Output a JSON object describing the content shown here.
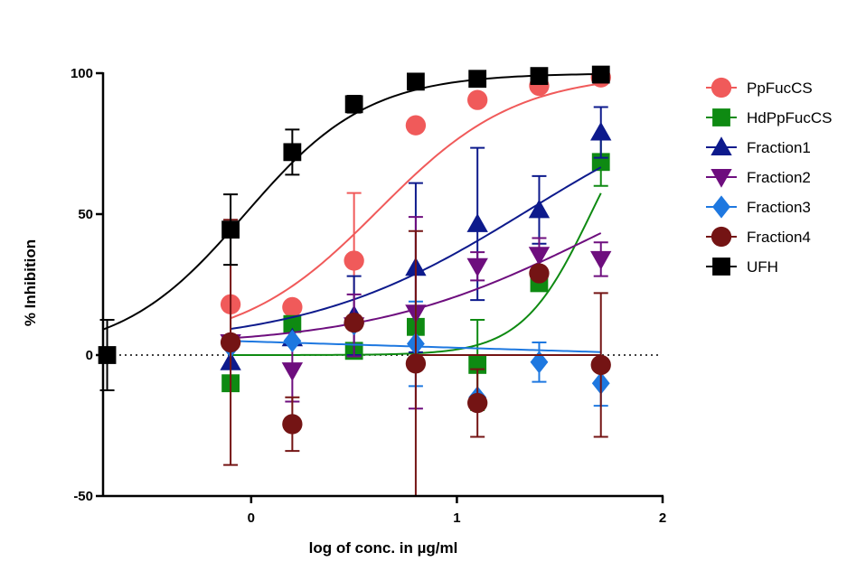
{
  "chart_data": {
    "type": "scatter",
    "xlabel": "log of conc. in µg/ml",
    "ylabel": "% Inhibition",
    "xlim": [
      -0.72,
      2
    ],
    "ylim": [
      -50,
      100
    ],
    "x_ticks": [
      0,
      1,
      2
    ],
    "x_tick_labels": [
      "0",
      "1",
      "2"
    ],
    "y_ticks": [
      -50,
      0,
      50,
      100
    ],
    "y_tick_labels": [
      "-50",
      "0",
      "50",
      "100"
    ],
    "zero_line": "dotted",
    "grid": false,
    "legend_position": "right",
    "series": [
      {
        "name": "PpFucCS",
        "color": "#F05A5A",
        "marker": "circle",
        "points": [
          {
            "x": -0.1,
            "y": 18,
            "err": 0
          },
          {
            "x": 0.2,
            "y": 17,
            "err": 0
          },
          {
            "x": 0.5,
            "y": 33.5,
            "err": 24
          },
          {
            "x": 0.8,
            "y": 81.5,
            "err": 0
          },
          {
            "x": 1.1,
            "y": 90.5,
            "err": 2
          },
          {
            "x": 1.4,
            "y": 95.5,
            "err": 0
          },
          {
            "x": 1.7,
            "y": 98.5,
            "err": 0
          }
        ],
        "fit": {
          "bottom": 3,
          "top": 100,
          "logec50": 0.62,
          "hill": 1.3
        }
      },
      {
        "name": "HdPpFucCS",
        "color": "#0E8A12",
        "marker": "square",
        "points": [
          {
            "x": -0.1,
            "y": -10,
            "err": 0
          },
          {
            "x": 0.2,
            "y": 11,
            "err": 0
          },
          {
            "x": 0.5,
            "y": 1.5,
            "err": 0
          },
          {
            "x": 0.8,
            "y": 10,
            "err": 0
          },
          {
            "x": 1.1,
            "y": -3.5,
            "err": 16
          },
          {
            "x": 1.4,
            "y": 25.5,
            "err": 0
          },
          {
            "x": 1.7,
            "y": 68.5,
            "err": 8.5
          }
        ],
        "fit": {
          "bottom": 0,
          "top": 100,
          "logec50": 1.65,
          "hill": 2.6
        }
      },
      {
        "name": "Fraction1",
        "color": "#0D1A8C",
        "marker": "triangle-up",
        "points": [
          {
            "x": -0.1,
            "y": -2.5,
            "err": 0
          },
          {
            "x": 0.2,
            "y": 6,
            "err": 0
          },
          {
            "x": 0.5,
            "y": 14,
            "err": 14
          },
          {
            "x": 0.8,
            "y": 31,
            "err": 30
          },
          {
            "x": 1.1,
            "y": 46.5,
            "err": 27
          },
          {
            "x": 1.4,
            "y": 51.5,
            "err": 12
          },
          {
            "x": 1.7,
            "y": 79,
            "err": 9
          }
        ],
        "fit": {
          "bottom": 3,
          "top": 100,
          "logec50": 1.35,
          "hill": 0.8
        }
      },
      {
        "name": "Fraction2",
        "color": "#6E0E7E",
        "marker": "triangle-down",
        "points": [
          {
            "x": -0.1,
            "y": 4.5,
            "err": 0
          },
          {
            "x": 0.2,
            "y": -5.5,
            "err": 11
          },
          {
            "x": 0.5,
            "y": 10.5,
            "err": 11
          },
          {
            "x": 0.8,
            "y": 15,
            "err": 34
          },
          {
            "x": 1.1,
            "y": 31.5,
            "err": 5
          },
          {
            "x": 1.4,
            "y": 35.5,
            "err": 6
          },
          {
            "x": 1.7,
            "y": 34,
            "err": 6
          }
        ],
        "fit": {
          "bottom": 3,
          "top": 80,
          "logec50": 1.65,
          "hill": 0.8
        }
      },
      {
        "name": "Fraction3",
        "color": "#1E78E0",
        "marker": "diamond",
        "points": [
          {
            "x": -0.1,
            "y": 3,
            "err": 0
          },
          {
            "x": 0.2,
            "y": 5,
            "err": 0
          },
          {
            "x": 0.5,
            "y": 11,
            "err": 0
          },
          {
            "x": 0.8,
            "y": 4,
            "err": 15
          },
          {
            "x": 1.1,
            "y": -15,
            "err": 0
          },
          {
            "x": 1.4,
            "y": -2.5,
            "err": 7
          },
          {
            "x": 1.7,
            "y": -10,
            "err": 8
          }
        ],
        "fit": {
          "line": true,
          "slope": -2.2,
          "intercept": 4.8
        }
      },
      {
        "name": "Fraction4",
        "color": "#741414",
        "marker": "circle",
        "points": [
          {
            "x": -0.1,
            "y": 4.5,
            "err": 43.5
          },
          {
            "x": 0.2,
            "y": -24.5,
            "err": 9.5
          },
          {
            "x": 0.5,
            "y": 11.5,
            "err": 0
          },
          {
            "x": 0.8,
            "y": -3,
            "err": 47
          },
          {
            "x": 1.1,
            "y": -17,
            "err": 12
          },
          {
            "x": 1.4,
            "y": 29,
            "err": 0
          },
          {
            "x": 1.7,
            "y": -3.5,
            "err": 25.5
          }
        ],
        "fit": {
          "line": true,
          "slope": 0,
          "intercept": 0,
          "xrange": [
            0.8,
            1.7
          ]
        }
      },
      {
        "name": "UFH",
        "color": "#000000",
        "marker": "square",
        "points": [
          {
            "x": -0.7,
            "y": 0,
            "err": 12.5
          },
          {
            "x": -0.1,
            "y": 44.5,
            "err": 12.5
          },
          {
            "x": 0.2,
            "y": 72,
            "err": 8
          },
          {
            "x": 0.5,
            "y": 89,
            "err": 3
          },
          {
            "x": 0.8,
            "y": 97,
            "err": 0
          },
          {
            "x": 1.1,
            "y": 98,
            "err": 0
          },
          {
            "x": 1.4,
            "y": 99,
            "err": 0
          },
          {
            "x": 1.7,
            "y": 99.5,
            "err": 0
          }
        ],
        "fit": {
          "bottom": 0,
          "top": 100,
          "logec50": -0.03,
          "hill": 1.45,
          "xrange": [
            -0.72,
            1.7
          ]
        }
      }
    ]
  }
}
